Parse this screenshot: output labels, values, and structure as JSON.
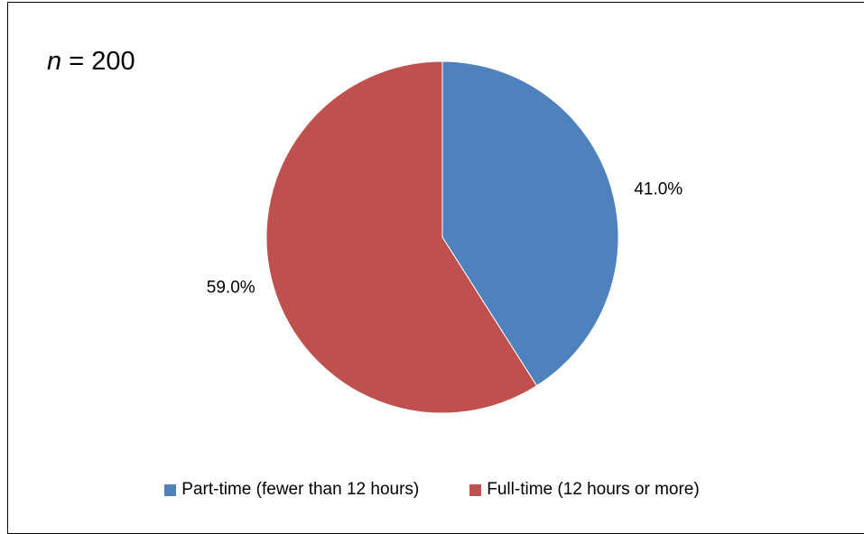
{
  "annotation": {
    "variable": "n",
    "rest": " = 200"
  },
  "chart_data": {
    "type": "pie",
    "title": "",
    "slices": [
      {
        "name": "Part-time (fewer than 12 hours)",
        "value": 41.0,
        "label": "41.0%",
        "color": "#4F81BD"
      },
      {
        "name": "Full-time (12 hours or more)",
        "value": 59.0,
        "label": "59.0%",
        "color": "#C0504D"
      }
    ],
    "start_angle": "12 o'clock",
    "direction": "clockwise",
    "legend_position": "bottom"
  }
}
